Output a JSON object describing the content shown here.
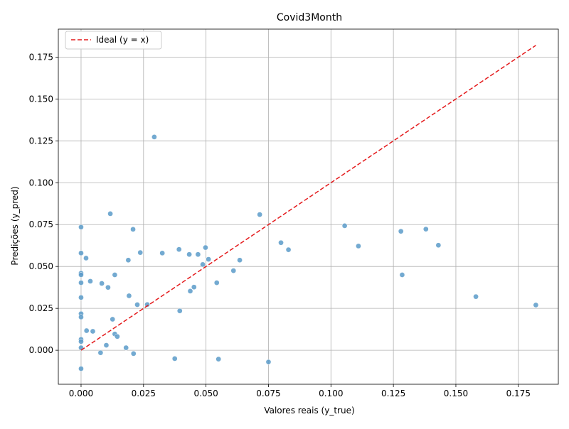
{
  "chart_data": {
    "type": "scatter",
    "title": "Covid3Month",
    "xlabel": "Valores reais (y_true)",
    "ylabel": "Predições (y_pred)",
    "xlim": [
      -0.0091,
      0.191
    ],
    "ylim": [
      -0.0203,
      0.1917
    ],
    "xticks": [
      "0.000",
      "0.025",
      "0.050",
      "0.075",
      "0.100",
      "0.125",
      "0.150",
      "0.175"
    ],
    "yticks": [
      "0.000",
      "0.025",
      "0.050",
      "0.075",
      "0.100",
      "0.125",
      "0.150",
      "0.175"
    ],
    "grid": true,
    "legend_position": "top-left",
    "ideal_line": {
      "name": "Ideal (y = x)",
      "from": [
        0,
        0
      ],
      "to": [
        0.182,
        0.182
      ],
      "color": "#e41a1c"
    },
    "points_color": "#5b9bc9",
    "points": [
      [
        0.0,
        0.0735
      ],
      [
        0.0,
        0.058
      ],
      [
        0.0,
        0.046
      ],
      [
        0.0,
        0.045
      ],
      [
        0.0,
        0.0403
      ],
      [
        0.0,
        0.0315
      ],
      [
        0.0,
        0.0218
      ],
      [
        0.0,
        0.0198
      ],
      [
        0.0,
        0.0065
      ],
      [
        0.0,
        0.0052
      ],
      [
        0.0,
        0.0015
      ],
      [
        0.0,
        -0.011
      ],
      [
        0.002,
        0.055
      ],
      [
        0.0022,
        0.0117
      ],
      [
        0.0037,
        0.0412
      ],
      [
        0.0047,
        0.0113
      ],
      [
        0.0078,
        -0.0015
      ],
      [
        0.0083,
        0.0399
      ],
      [
        0.0101,
        0.003
      ],
      [
        0.0108,
        0.0375
      ],
      [
        0.0117,
        0.0815
      ],
      [
        0.0126,
        0.0185
      ],
      [
        0.0135,
        0.0097
      ],
      [
        0.0135,
        0.045
      ],
      [
        0.0145,
        0.0082
      ],
      [
        0.018,
        0.0015
      ],
      [
        0.0189,
        0.0538
      ],
      [
        0.0192,
        0.0325
      ],
      [
        0.0208,
        0.0722
      ],
      [
        0.021,
        -0.002
      ],
      [
        0.0225,
        0.0272
      ],
      [
        0.0237,
        0.0583
      ],
      [
        0.0265,
        0.0273
      ],
      [
        0.0293,
        0.1273
      ],
      [
        0.0325,
        0.058
      ],
      [
        0.0375,
        -0.005
      ],
      [
        0.0392,
        0.0602
      ],
      [
        0.0395,
        0.0235
      ],
      [
        0.0433,
        0.0572
      ],
      [
        0.0437,
        0.0353
      ],
      [
        0.0452,
        0.0377
      ],
      [
        0.0468,
        0.0572
      ],
      [
        0.0487,
        0.0512
      ],
      [
        0.0498,
        0.0613
      ],
      [
        0.051,
        0.0543
      ],
      [
        0.0543,
        0.0403
      ],
      [
        0.055,
        -0.0053
      ],
      [
        0.061,
        0.0475
      ],
      [
        0.0635,
        0.0538
      ],
      [
        0.0715,
        0.081
      ],
      [
        0.075,
        -0.007
      ],
      [
        0.08,
        0.0642
      ],
      [
        0.083,
        0.06
      ],
      [
        0.1055,
        0.0743
      ],
      [
        0.111,
        0.0622
      ],
      [
        0.128,
        0.071
      ],
      [
        0.1285,
        0.045
      ],
      [
        0.138,
        0.0723
      ],
      [
        0.143,
        0.0627
      ],
      [
        0.158,
        0.032
      ],
      [
        0.182,
        0.027
      ]
    ]
  }
}
